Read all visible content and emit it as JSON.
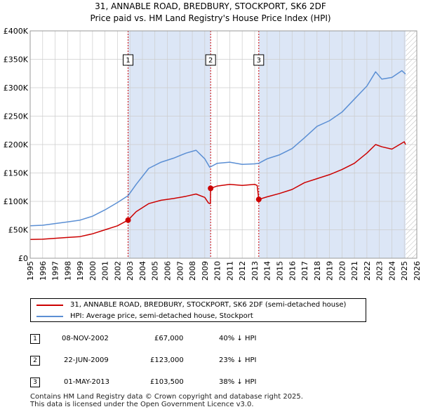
{
  "title_line1": "31, ANNABLE ROAD, BREDBURY, STOCKPORT, SK6 2DF",
  "title_line2": "Price paid vs. HM Land Registry's House Price Index (HPI)",
  "colors": {
    "price_paid": "#cc0000",
    "hpi": "#5b8fd4",
    "shade": "#dce6f6",
    "grid": "#cccccc"
  },
  "chart_data": {
    "type": "line",
    "xlim": [
      1995,
      2026
    ],
    "ylim": [
      0,
      400000
    ],
    "y_ticks": [
      0,
      50000,
      100000,
      150000,
      200000,
      250000,
      300000,
      350000,
      400000
    ],
    "y_tick_labels": [
      "£0",
      "£50K",
      "£100K",
      "£150K",
      "£200K",
      "£250K",
      "£300K",
      "£350K",
      "£400K"
    ],
    "x_tick_labels": [
      "1995",
      "1996",
      "1997",
      "1998",
      "1999",
      "2000",
      "2001",
      "2002",
      "2003",
      "2004",
      "2005",
      "2006",
      "2007",
      "2008",
      "2009",
      "2010",
      "2011",
      "2012",
      "2013",
      "2014",
      "2015",
      "2016",
      "2017",
      "2018",
      "2019",
      "2020",
      "2021",
      "2022",
      "2023",
      "2024",
      "2025",
      "2026"
    ],
    "shaded_ranges": [
      [
        2002.85,
        2009.47
      ],
      [
        2013.33,
        2025.1
      ]
    ],
    "future_hatch_from": 2025.1,
    "series": [
      {
        "name": "31, ANNABLE ROAD, BREDBURY, STOCKPORT, SK6 2DF (semi-detached house)",
        "points": [
          [
            1995.0,
            33000
          ],
          [
            1996.0,
            33500
          ],
          [
            1997.0,
            35000
          ],
          [
            1998.0,
            36500
          ],
          [
            1999.0,
            38000
          ],
          [
            2000.0,
            43000
          ],
          [
            2001.0,
            50000
          ],
          [
            2002.0,
            57000
          ],
          [
            2002.85,
            67000
          ],
          [
            2003.5,
            82000
          ],
          [
            2004.5,
            96000
          ],
          [
            2005.5,
            102000
          ],
          [
            2006.5,
            105000
          ],
          [
            2007.5,
            109000
          ],
          [
            2008.3,
            113000
          ],
          [
            2009.0,
            107000
          ],
          [
            2009.3,
            97000
          ],
          [
            2009.45,
            96000
          ],
          [
            2009.47,
            123000
          ],
          [
            2010.0,
            127000
          ],
          [
            2011.0,
            130000
          ],
          [
            2012.0,
            128000
          ],
          [
            2013.0,
            130000
          ],
          [
            2013.2,
            128000
          ],
          [
            2013.33,
            103500
          ],
          [
            2014.0,
            108000
          ],
          [
            2015.0,
            114000
          ],
          [
            2016.0,
            121000
          ],
          [
            2017.0,
            133000
          ],
          [
            2018.0,
            140000
          ],
          [
            2019.0,
            147000
          ],
          [
            2020.0,
            156000
          ],
          [
            2021.0,
            167000
          ],
          [
            2022.0,
            185000
          ],
          [
            2022.7,
            200000
          ],
          [
            2023.2,
            196000
          ],
          [
            2024.0,
            192000
          ],
          [
            2025.0,
            205000
          ],
          [
            2025.1,
            200000
          ]
        ]
      },
      {
        "name": "HPI: Average price, semi-detached house, Stockport",
        "points": [
          [
            1995.0,
            57000
          ],
          [
            1996.0,
            58000
          ],
          [
            1997.0,
            61000
          ],
          [
            1998.0,
            64000
          ],
          [
            1999.0,
            67000
          ],
          [
            2000.0,
            74000
          ],
          [
            2001.0,
            85000
          ],
          [
            2002.0,
            98000
          ],
          [
            2002.85,
            110000
          ],
          [
            2003.5,
            130000
          ],
          [
            2004.5,
            158000
          ],
          [
            2005.5,
            169000
          ],
          [
            2006.5,
            176000
          ],
          [
            2007.5,
            185000
          ],
          [
            2008.3,
            190000
          ],
          [
            2009.0,
            175000
          ],
          [
            2009.4,
            160000
          ],
          [
            2010.0,
            167000
          ],
          [
            2011.0,
            169000
          ],
          [
            2012.0,
            165000
          ],
          [
            2013.0,
            166000
          ],
          [
            2013.33,
            167000
          ],
          [
            2014.0,
            175000
          ],
          [
            2015.0,
            182000
          ],
          [
            2016.0,
            193000
          ],
          [
            2017.0,
            212000
          ],
          [
            2018.0,
            232000
          ],
          [
            2019.0,
            242000
          ],
          [
            2020.0,
            257000
          ],
          [
            2021.0,
            280000
          ],
          [
            2022.0,
            303000
          ],
          [
            2022.7,
            328000
          ],
          [
            2023.2,
            315000
          ],
          [
            2024.0,
            318000
          ],
          [
            2024.8,
            330000
          ],
          [
            2025.1,
            324000
          ]
        ]
      }
    ],
    "markers": [
      {
        "label": "1",
        "x": 2002.85,
        "y": 67000
      },
      {
        "label": "2",
        "x": 2009.47,
        "y": 123000
      },
      {
        "label": "3",
        "x": 2013.33,
        "y": 103500
      }
    ]
  },
  "legend": {
    "price_paid_label": "31, ANNABLE ROAD, BREDBURY, STOCKPORT, SK6 2DF (semi-detached house)",
    "hpi_label": "HPI: Average price, semi-detached house, Stockport"
  },
  "transactions": [
    {
      "num": "1",
      "date": "08-NOV-2002",
      "price": "£67,000",
      "hpi": "40% ↓ HPI"
    },
    {
      "num": "2",
      "date": "22-JUN-2009",
      "price": "£123,000",
      "hpi": "23% ↓ HPI"
    },
    {
      "num": "3",
      "date": "01-MAY-2013",
      "price": "£103,500",
      "hpi": "38% ↓ HPI"
    }
  ],
  "footer_line1": "Contains HM Land Registry data © Crown copyright and database right 2025.",
  "footer_line2": "This data is licensed under the Open Government Licence v3.0."
}
